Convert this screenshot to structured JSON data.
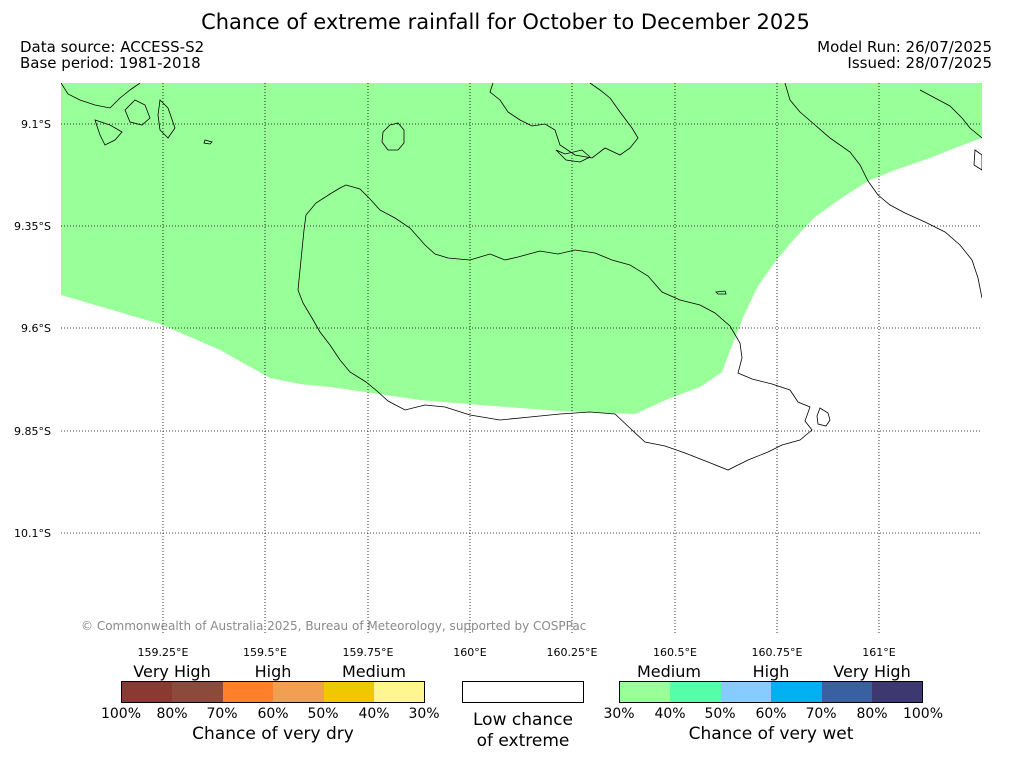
{
  "title": "Chance of extreme rainfall for October to December 2025",
  "data_source": "Data source: ACCESS-S2",
  "base_period": "Base period: 1981-2018",
  "model_run": "Model Run: 26/07/2025",
  "issued": "Issued: 28/07/2025",
  "credit": "© Commonwealth of Australia 2025, Bureau of Meteorology, supported by COSPPac",
  "map": {
    "lat_labels": [
      "9.1°S",
      "9.35°S",
      "9.6°S",
      "9.85°S",
      "10.1°S"
    ],
    "lon_labels": [
      "159.25°E",
      "159.5°E",
      "159.75°E",
      "160°E",
      "160.25°E",
      "160.5°E",
      "160.75°E",
      "161°E"
    ],
    "shaded_category": "Chance of very wet 30%-40%",
    "shaded_color": "#99ff99"
  },
  "legend_dry": {
    "categories": [
      "Very High",
      "High",
      "Medium"
    ],
    "colors": [
      "#8b3a32",
      "#8c4a3a",
      "#ff7f2a",
      "#f0a050",
      "#f0c800",
      "#fff68f"
    ],
    "percents": [
      "100%",
      "80%",
      "70%",
      "60%",
      "50%",
      "40%",
      "30%"
    ],
    "title": "Chance of very dry"
  },
  "legend_low": {
    "line1": "Low chance",
    "line2": "of extreme",
    "color": "#ffffff"
  },
  "legend_wet": {
    "categories": [
      "Medium",
      "High",
      "Very High"
    ],
    "colors": [
      "#99ff99",
      "#55ffaa",
      "#88ccff",
      "#00b0f0",
      "#3a60a0",
      "#3d3870"
    ],
    "percents": [
      "30%",
      "40%",
      "50%",
      "60%",
      "70%",
      "80%",
      "100%"
    ],
    "title": "Chance of very wet"
  }
}
